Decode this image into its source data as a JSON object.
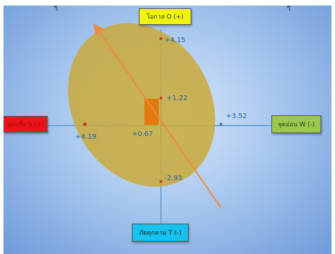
{
  "top_marks": [
    "ๆ",
    "ๆ"
  ],
  "axes": {
    "top": "โอกาส O (+)",
    "bottom": "ภัยคุกคาม T (-)",
    "left": "จุดแข็ง S (+)",
    "right": "จุดอ่อน W (-)"
  },
  "values": {
    "o": "+4.15",
    "center_up": "+1.22",
    "w": "+3.52",
    "s": "+4.19",
    "center_left": "+0.67",
    "t": "-2.93"
  },
  "colors": {
    "top_box": "#f2f20f",
    "bottom_box": "#16c2f0",
    "left_box": "#e8151b",
    "right_box": "#9bc84f",
    "ellipse": "#c9a93a",
    "center_rect": "#e07b10",
    "arrow": "#f0893d",
    "axis": "#6ea6d8"
  }
}
